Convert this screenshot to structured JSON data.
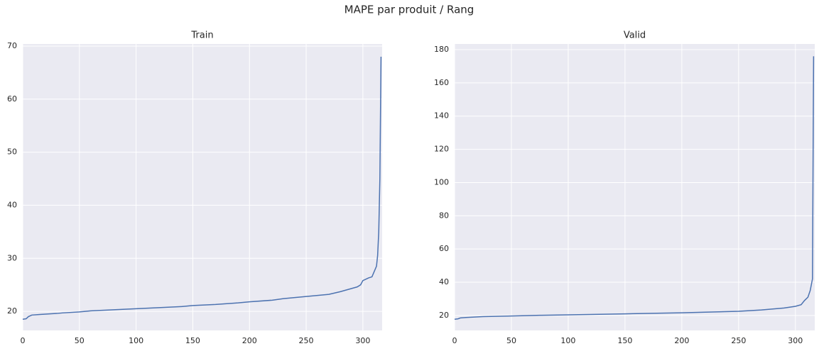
{
  "title": "MAPE par produit / Rang",
  "chart_data": [
    {
      "type": "line",
      "title": "Train",
      "color": "#4c72b0",
      "grid": true,
      "x": [
        0,
        3,
        5,
        8,
        15,
        30,
        35,
        50,
        60,
        80,
        100,
        120,
        140,
        150,
        170,
        190,
        200,
        220,
        230,
        250,
        260,
        270,
        280,
        290,
        295,
        298,
        300,
        305,
        308,
        310,
        312,
        313,
        314,
        315,
        316
      ],
      "values": [
        18.5,
        18.6,
        19.0,
        19.3,
        19.4,
        19.6,
        19.7,
        19.9,
        20.1,
        20.3,
        20.5,
        20.7,
        20.9,
        21.1,
        21.3,
        21.6,
        21.8,
        22.1,
        22.4,
        22.8,
        23.0,
        23.2,
        23.7,
        24.3,
        24.6,
        25.0,
        25.8,
        26.3,
        26.5,
        27.5,
        28.5,
        30.5,
        35,
        45,
        68
      ],
      "xlim": [
        0,
        317
      ],
      "ylim": [
        16.4,
        70.4
      ],
      "xticks": [
        0,
        50,
        100,
        150,
        200,
        250,
        300
      ],
      "yticks": [
        20,
        30,
        40,
        50,
        60,
        70
      ]
    },
    {
      "type": "line",
      "title": "Valid",
      "color": "#4c72b0",
      "grid": true,
      "x": [
        0,
        3,
        5,
        10,
        25,
        50,
        75,
        100,
        150,
        200,
        250,
        270,
        290,
        300,
        305,
        308,
        311,
        313,
        315,
        316
      ],
      "values": [
        17.7,
        18,
        18.5,
        18.8,
        19.3,
        19.7,
        20.1,
        20.4,
        21,
        21.6,
        22.5,
        23.3,
        24.5,
        25.5,
        26.5,
        29,
        31,
        35,
        42,
        176
      ],
      "xlim": [
        0,
        317
      ],
      "ylim": [
        11,
        183.4
      ],
      "xticks": [
        0,
        50,
        100,
        150,
        200,
        250,
        300
      ],
      "yticks": [
        20,
        40,
        60,
        80,
        100,
        120,
        140,
        160,
        180
      ]
    }
  ]
}
